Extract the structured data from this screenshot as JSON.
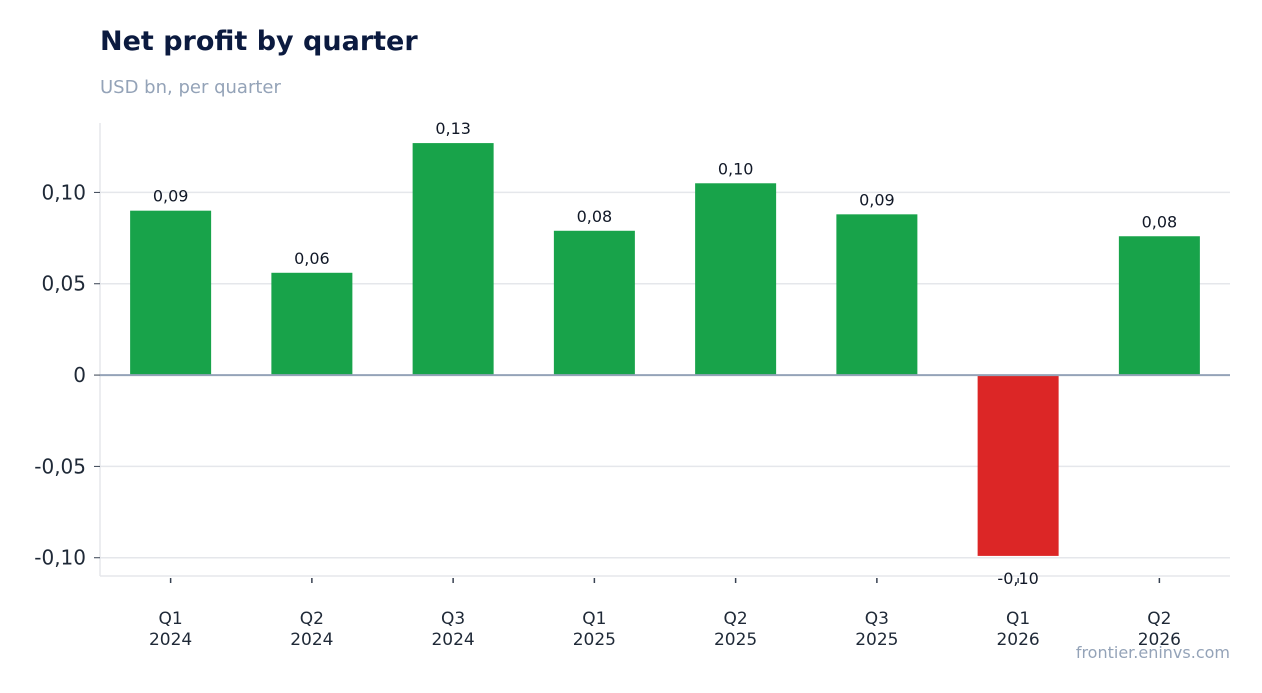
{
  "chart_data": {
    "type": "bar",
    "title": "Net profit by quarter",
    "subtitle": "USD bn, per quarter",
    "categories": [
      [
        "Q1",
        "2024"
      ],
      [
        "Q2",
        "2024"
      ],
      [
        "Q3",
        "2024"
      ],
      [
        "Q1",
        "2025"
      ],
      [
        "Q2",
        "2025"
      ],
      [
        "Q3",
        "2025"
      ],
      [
        "Q1",
        "2026"
      ],
      [
        "Q2",
        "2026"
      ]
    ],
    "values": [
      0.09,
      0.056,
      0.127,
      0.079,
      0.105,
      0.088,
      -0.099,
      0.076
    ],
    "data_labels": [
      "0,09",
      "0,06",
      "0,13",
      "0,08",
      "0,10",
      "0,09",
      "-0,10",
      "0,08"
    ],
    "ylim": [
      -0.11,
      0.138
    ],
    "yticks": [
      {
        "value": 0.1,
        "label": "0,10"
      },
      {
        "value": 0.05,
        "label": "0,05"
      },
      {
        "value": 0,
        "label": "0"
      },
      {
        "value": -0.05,
        "label": "-0,05"
      },
      {
        "value": -0.1,
        "label": "-0,10"
      }
    ],
    "grid": true,
    "colors": {
      "positive": "#18a34a",
      "negative": "#dc2626",
      "grid": "#e5e7eb",
      "zero": "#94a3b8"
    }
  },
  "source": "frontier.eninvs.com"
}
